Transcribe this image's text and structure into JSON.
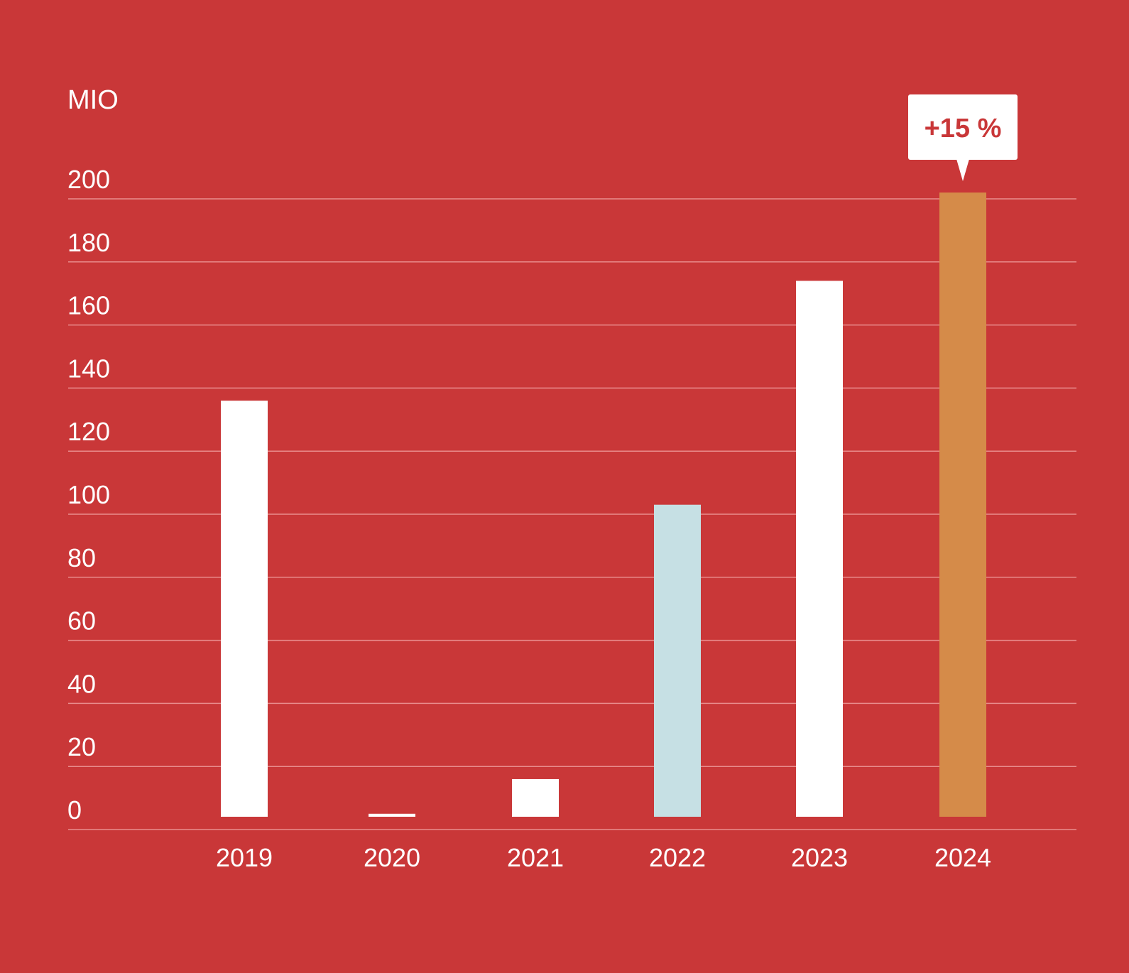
{
  "chart_data": {
    "type": "bar",
    "unit_label": "MIO",
    "categories": [
      "2019",
      "2020",
      "2021",
      "2022",
      "2023",
      "2024"
    ],
    "values": [
      136,
      5,
      16,
      103,
      174,
      202
    ],
    "ylim": [
      0,
      200
    ],
    "yticks": [
      0,
      20,
      40,
      60,
      80,
      100,
      120,
      140,
      160,
      180,
      200
    ],
    "bar_colors": [
      "#ffffff",
      "#ffffff",
      "#ffffff",
      "#c6e0e4",
      "#ffffff",
      "#d58b49"
    ],
    "gridline_color": "#e98d8d",
    "annotation": {
      "text": "+15 %",
      "category": "2024"
    },
    "background_color": "#c93738",
    "grid": true,
    "legend": "none",
    "title": "",
    "xlabel": "",
    "ylabel": "MIO"
  }
}
